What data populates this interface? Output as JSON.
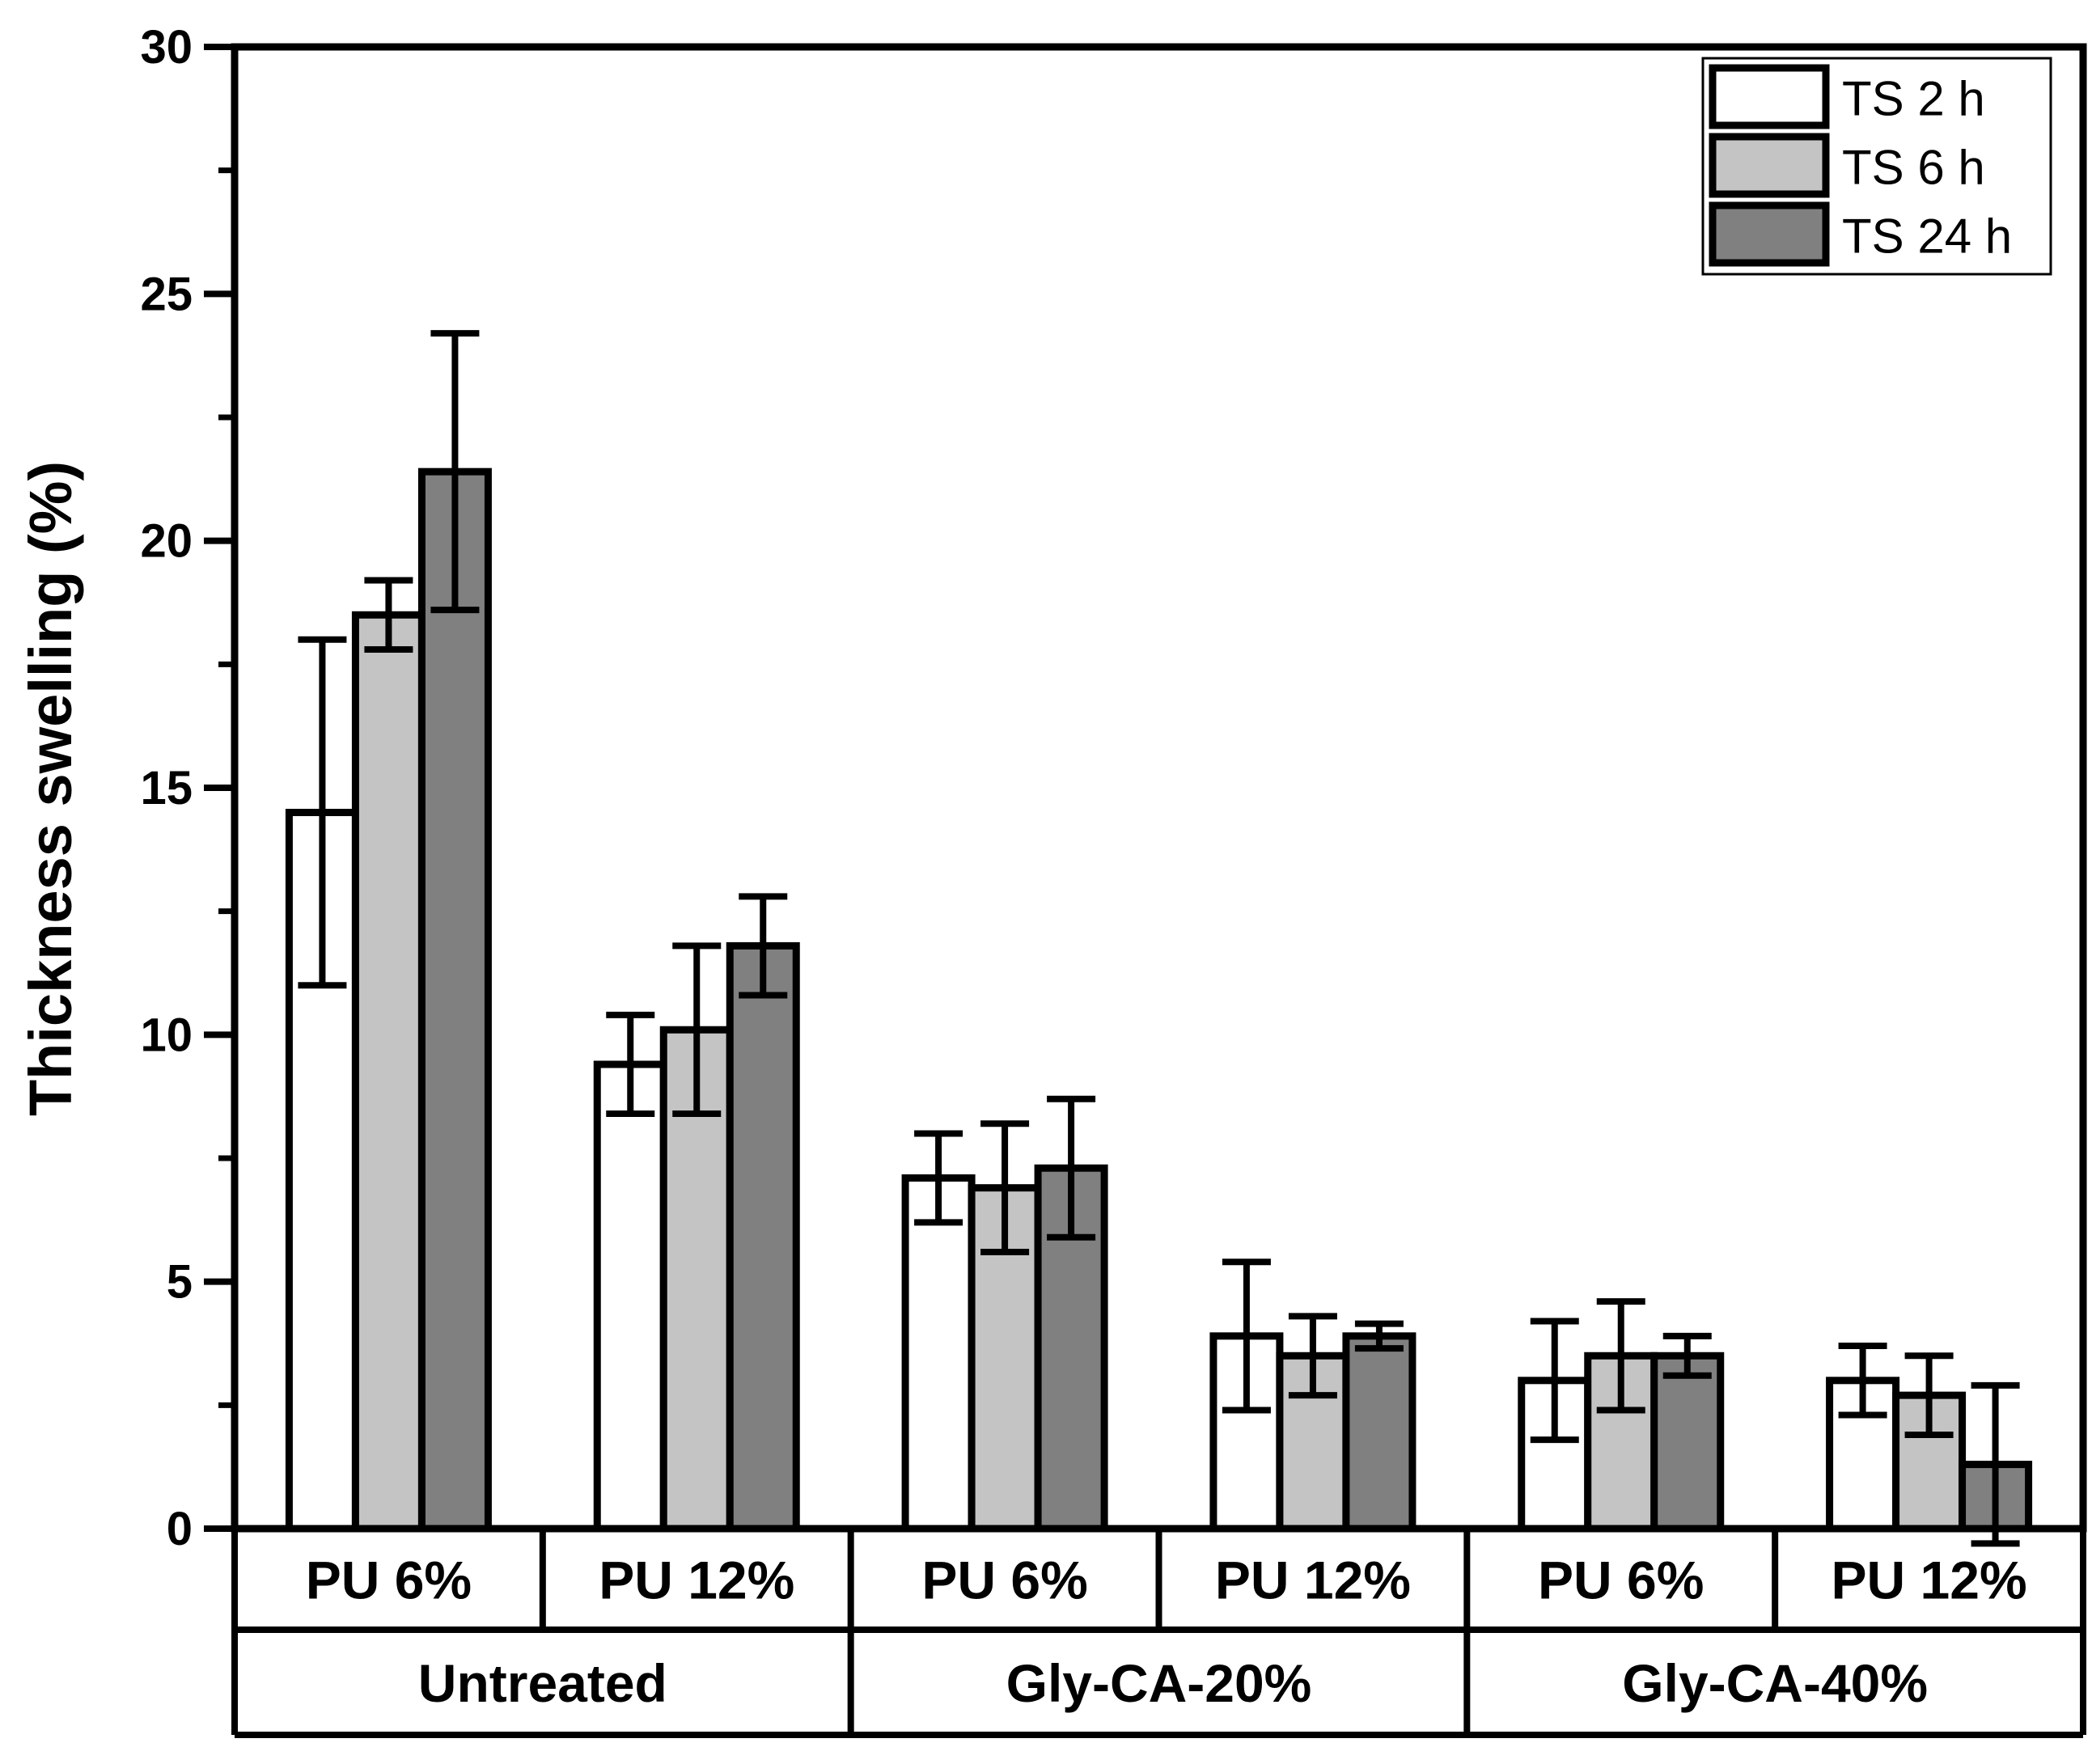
{
  "chart_data": {
    "type": "bar",
    "title": "",
    "xlabel": "",
    "ylabel": "Thickness swelling (%)",
    "ylim": [
      0,
      30
    ],
    "yticks": [
      0,
      5,
      10,
      15,
      20,
      25,
      30
    ],
    "grid": false,
    "legend_position": "top-right",
    "groups": [
      {
        "name": "Untreated",
        "categories": [
          "PU 6%",
          "PU 12%"
        ]
      },
      {
        "name": "Gly-CA-20%",
        "categories": [
          "PU 6%",
          "PU 12%"
        ]
      },
      {
        "name": "Gly-CA-40%",
        "categories": [
          "PU 6%",
          "PU 12%"
        ]
      }
    ],
    "series": [
      {
        "name": "TS 2 h",
        "color": "#ffffff",
        "values": [
          14.5,
          9.4,
          7.1,
          3.9,
          3.0,
          3.0
        ],
        "errors": [
          3.5,
          1.0,
          0.9,
          1.5,
          1.2,
          0.7
        ]
      },
      {
        "name": "TS 6 h",
        "color": "#c4c4c4",
        "values": [
          18.5,
          10.1,
          6.9,
          3.5,
          3.5,
          2.7
        ],
        "errors": [
          0.7,
          1.7,
          1.3,
          0.8,
          1.1,
          0.8
        ]
      },
      {
        "name": "TS 24 h",
        "color": "#808080",
        "values": [
          21.4,
          11.8,
          7.3,
          3.9,
          3.5,
          1.3
        ],
        "errors": [
          2.8,
          1.0,
          1.4,
          0.25,
          0.4,
          1.6
        ]
      }
    ]
  }
}
